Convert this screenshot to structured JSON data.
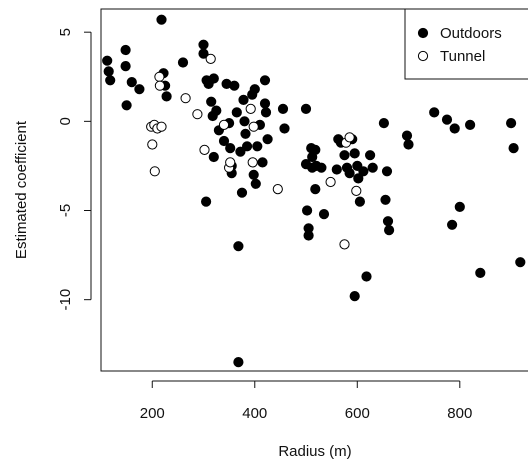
{
  "chart_data": {
    "type": "scatter",
    "title": "",
    "xlabel": "Radius (m)",
    "ylabel": "Estimated coefficient",
    "xlim": [
      100,
      935
    ],
    "ylim": [
      -14,
      6.3
    ],
    "x_ticks": [
      200,
      400,
      600,
      800
    ],
    "y_ticks": [
      5,
      0,
      -5,
      -10
    ],
    "legend_position": "top-right",
    "grid": false,
    "series": [
      {
        "name": "Outdoors",
        "marker": "filled-circle",
        "color": "#000000",
        "points": [
          [
            112,
            3.4
          ],
          [
            115,
            2.8
          ],
          [
            118,
            2.3
          ],
          [
            148,
            4.0
          ],
          [
            148,
            3.1
          ],
          [
            150,
            0.9
          ],
          [
            160,
            2.2
          ],
          [
            175,
            1.8
          ],
          [
            218,
            5.7
          ],
          [
            222,
            2.7
          ],
          [
            225,
            2.0
          ],
          [
            228,
            1.4
          ],
          [
            260,
            3.3
          ],
          [
            300,
            4.3
          ],
          [
            300,
            3.8
          ],
          [
            306,
            2.3
          ],
          [
            305,
            -4.5
          ],
          [
            310,
            2.1
          ],
          [
            315,
            1.1
          ],
          [
            318,
            0.3
          ],
          [
            320,
            2.4
          ],
          [
            320,
            -2.0
          ],
          [
            325,
            0.6
          ],
          [
            330,
            -0.5
          ],
          [
            340,
            -1.1
          ],
          [
            345,
            2.1
          ],
          [
            350,
            -0.1
          ],
          [
            352,
            -1.5
          ],
          [
            355,
            -2.5
          ],
          [
            355,
            -2.9
          ],
          [
            360,
            2.0
          ],
          [
            365,
            0.5
          ],
          [
            368,
            -7.0
          ],
          [
            368,
            -13.5
          ],
          [
            372,
            -1.7
          ],
          [
            375,
            -4.0
          ],
          [
            378,
            1.2
          ],
          [
            380,
            0.0
          ],
          [
            382,
            -0.7
          ],
          [
            385,
            -1.4
          ],
          [
            395,
            1.5
          ],
          [
            398,
            -3.0
          ],
          [
            400,
            1.8
          ],
          [
            402,
            -3.5
          ],
          [
            405,
            -1.4
          ],
          [
            410,
            -0.2
          ],
          [
            415,
            -2.3
          ],
          [
            420,
            2.3
          ],
          [
            420,
            1.0
          ],
          [
            422,
            0.5
          ],
          [
            425,
            -1.0
          ],
          [
            455,
            0.7
          ],
          [
            458,
            -0.4
          ],
          [
            500,
            0.7
          ],
          [
            500,
            -2.4
          ],
          [
            502,
            -5.0
          ],
          [
            505,
            -6.0
          ],
          [
            505,
            -6.4
          ],
          [
            510,
            -1.5
          ],
          [
            512,
            -2.0
          ],
          [
            512,
            -2.6
          ],
          [
            518,
            -1.6
          ],
          [
            518,
            -3.8
          ],
          [
            520,
            -2.5
          ],
          [
            530,
            -2.6
          ],
          [
            535,
            -5.2
          ],
          [
            560,
            -2.7
          ],
          [
            563,
            -1.0
          ],
          [
            568,
            -1.2
          ],
          [
            575,
            -1.9
          ],
          [
            580,
            -2.6
          ],
          [
            585,
            -2.9
          ],
          [
            590,
            -1.0
          ],
          [
            595,
            -1.8
          ],
          [
            595,
            -9.8
          ],
          [
            600,
            -2.5
          ],
          [
            602,
            -3.2
          ],
          [
            605,
            -4.5
          ],
          [
            612,
            -2.8
          ],
          [
            618,
            -8.7
          ],
          [
            625,
            -1.9
          ],
          [
            630,
            -2.6
          ],
          [
            652,
            -0.1
          ],
          [
            655,
            -4.4
          ],
          [
            658,
            -2.8
          ],
          [
            660,
            -5.6
          ],
          [
            662,
            -6.1
          ],
          [
            697,
            -0.8
          ],
          [
            700,
            -1.3
          ],
          [
            750,
            0.5
          ],
          [
            775,
            0.1
          ],
          [
            785,
            -5.8
          ],
          [
            790,
            -0.4
          ],
          [
            800,
            -4.8
          ],
          [
            820,
            -0.2
          ],
          [
            840,
            -8.5
          ],
          [
            900,
            -0.1
          ],
          [
            905,
            -1.5
          ],
          [
            918,
            -7.9
          ]
        ]
      },
      {
        "name": "Tunnel",
        "marker": "open-circle",
        "color": "#000000",
        "points": [
          [
            198,
            -0.3
          ],
          [
            200,
            -1.3
          ],
          [
            204,
            -0.2
          ],
          [
            205,
            -2.8
          ],
          [
            210,
            -0.4
          ],
          [
            214,
            2.5
          ],
          [
            215,
            2.0
          ],
          [
            218,
            -0.3
          ],
          [
            265,
            1.3
          ],
          [
            288,
            0.4
          ],
          [
            302,
            -1.6
          ],
          [
            314,
            3.5
          ],
          [
            340,
            -0.2
          ],
          [
            350,
            -2.6
          ],
          [
            352,
            -2.3
          ],
          [
            392,
            0.7
          ],
          [
            396,
            -2.3
          ],
          [
            398,
            -0.3
          ],
          [
            445,
            -3.8
          ],
          [
            548,
            -3.4
          ],
          [
            575,
            -6.9
          ],
          [
            578,
            -1.2
          ],
          [
            585,
            -0.9
          ],
          [
            598,
            -3.9
          ]
        ]
      }
    ]
  }
}
